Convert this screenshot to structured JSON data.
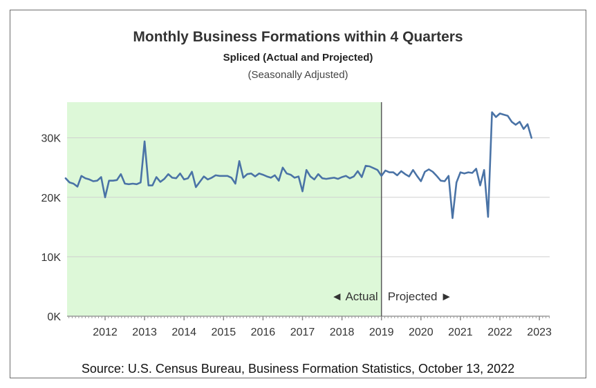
{
  "header": {
    "title": "Monthly Business Formations within 4 Quarters",
    "subtitle": "Spliced (Actual and Projected)",
    "note": "(Seasonally Adjusted)"
  },
  "source": "Source: U.S. Census Bureau, Business Formation Statistics, October 13, 2022",
  "colors": {
    "line": "#4a73a6",
    "actual_region": "#ddf8d8",
    "grid": "#cfcfcf",
    "divider": "#5a5a5a",
    "arrow": "#3f6b3f"
  },
  "chart_data": {
    "type": "line",
    "title": "Monthly Business Formations within 4 Quarters",
    "subtitle": "Spliced (Actual and Projected)",
    "xlabel": "",
    "ylabel": "",
    "ylim": [
      0,
      36000
    ],
    "xlim": [
      2011.0,
      2023.3
    ],
    "grid": true,
    "y_ticks": [
      0,
      10000,
      20000,
      30000
    ],
    "y_tick_labels": [
      "0K",
      "10K",
      "20K",
      "30K"
    ],
    "x_ticks": [
      2012,
      2013,
      2014,
      2015,
      2016,
      2017,
      2018,
      2019,
      2020,
      2021,
      2022,
      2023
    ],
    "x_tick_labels": [
      "2012",
      "2013",
      "2014",
      "2015",
      "2016",
      "2017",
      "2018",
      "2019",
      "2020",
      "2021",
      "2022",
      "2023"
    ],
    "regions": [
      {
        "label": "◄ Actual",
        "x_start": 2011.0,
        "x_end": 2019.0
      },
      {
        "label": "Projected ►",
        "x_start": 2019.0,
        "x_end": 2023.3
      }
    ],
    "series": [
      {
        "x": [
          2011.0,
          2011.1,
          2011.2,
          2011.3,
          2011.4,
          2011.5,
          2011.6,
          2011.7,
          2011.8,
          2011.9,
          2012.0,
          2012.1,
          2012.2,
          2012.3,
          2012.4,
          2012.5,
          2012.6,
          2012.7,
          2012.8,
          2012.9,
          2013.0,
          2013.1,
          2013.2,
          2013.3,
          2013.4,
          2013.5,
          2013.6,
          2013.7,
          2013.8,
          2013.9,
          2014.0,
          2014.1,
          2014.2,
          2014.3,
          2014.4,
          2014.5,
          2014.6,
          2014.7,
          2014.8,
          2014.9,
          2015.0,
          2015.1,
          2015.2,
          2015.3,
          2015.4,
          2015.5,
          2015.6,
          2015.7,
          2015.8,
          2015.9,
          2016.0,
          2016.1,
          2016.2,
          2016.3,
          2016.4,
          2016.5,
          2016.6,
          2016.7,
          2016.8,
          2016.9,
          2017.0,
          2017.1,
          2017.2,
          2017.3,
          2017.4,
          2017.5,
          2017.6,
          2017.7,
          2017.8,
          2017.9,
          2018.0,
          2018.1,
          2018.2,
          2018.3,
          2018.4,
          2018.5,
          2018.6,
          2018.7,
          2018.8,
          2018.9,
          2019.0,
          2019.1,
          2019.2,
          2019.3,
          2019.4,
          2019.5,
          2019.6,
          2019.7,
          2019.8,
          2019.9,
          2020.0,
          2020.1,
          2020.2,
          2020.3,
          2020.4,
          2020.5,
          2020.6,
          2020.7,
          2020.8,
          2020.9,
          2021.0,
          2021.1,
          2021.2,
          2021.3,
          2021.4,
          2021.5,
          2021.6,
          2021.7,
          2021.8,
          2021.9,
          2022.0,
          2022.1,
          2022.2,
          2022.3,
          2022.4,
          2022.5,
          2022.6,
          2022.7,
          2022.8
        ],
        "values": [
          23200,
          22500,
          22300,
          21800,
          23600,
          23200,
          23000,
          22700,
          22800,
          23400,
          20000,
          22800,
          22800,
          22900,
          23900,
          22300,
          22200,
          22300,
          22200,
          22500,
          29400,
          22000,
          22000,
          23400,
          22600,
          23100,
          23900,
          23300,
          23200,
          24000,
          23000,
          23200,
          24300,
          21700,
          22600,
          23500,
          23000,
          23300,
          23700,
          23600,
          23600,
          23600,
          23300,
          22300,
          26100,
          23300,
          23900,
          24000,
          23500,
          24000,
          23800,
          23500,
          23300,
          23700,
          22800,
          25000,
          24000,
          23800,
          23300,
          23500,
          21000,
          24600,
          23500,
          23000,
          23900,
          23200,
          23100,
          23200,
          23300,
          23100,
          23400,
          23600,
          23200,
          23500,
          24400,
          23400,
          25300,
          25200,
          24900,
          24600,
          23600,
          24500,
          24200,
          24200,
          23700,
          24400,
          23900,
          23500,
          24600,
          23600,
          22700,
          24300,
          24700,
          24300,
          23600,
          22800,
          22700,
          23600,
          16500,
          22500,
          24200,
          24000,
          24200,
          24100,
          24800,
          22000,
          24600,
          16700,
          34300,
          33500,
          34100,
          33900,
          33700,
          32700,
          32200,
          32700,
          31500,
          32300,
          30000
        ]
      }
    ]
  }
}
